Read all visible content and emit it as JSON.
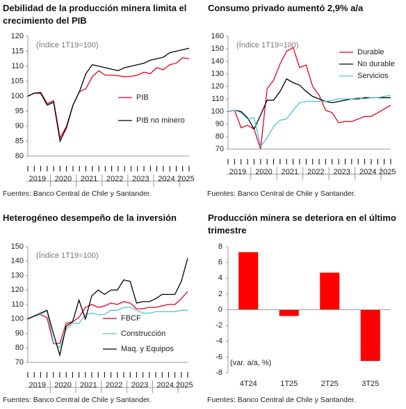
{
  "chart_data": [
    {
      "type": "line",
      "title": "Debilidad de la producción minera limita el crecimiento del PIB",
      "annotation": "(Índice 1T19=100)",
      "source": "Fuentes: Banco Central de Chile y Santander.",
      "year_labels": [
        "2019",
        "2020",
        "2021",
        "2022",
        "2023",
        "2024",
        "2025"
      ],
      "ylim": [
        80,
        120
      ],
      "yticks": [
        80,
        85,
        90,
        95,
        100,
        105,
        110,
        115,
        120
      ],
      "legend": "center",
      "series": [
        {
          "name": "PIB",
          "color": "#e3001b",
          "values": [
            100,
            101,
            101.3,
            97.5,
            98.5,
            86,
            90,
            97,
            101.5,
            102.5,
            106.5,
            108.5,
            107,
            107,
            106.8,
            106.5,
            106.6,
            107,
            108,
            107.5,
            109.5,
            108.8,
            110.5,
            111,
            112.8,
            112.5
          ]
        },
        {
          "name": "PIB no minero",
          "color": "#000000",
          "values": [
            100,
            101,
            101,
            97,
            98,
            85,
            89.5,
            97,
            101.5,
            107.5,
            110.5,
            110,
            109.5,
            109,
            108.5,
            109.5,
            110,
            110.5,
            111,
            112,
            112.5,
            113,
            114.5,
            115,
            115.5,
            116
          ]
        }
      ]
    },
    {
      "type": "line",
      "title": "Consumo privado aumentó 2,9% a/a",
      "annotation": "(Índice 1T19=100)",
      "source": "Fuentes: Banco Central de Chile y Santander.",
      "year_labels": [
        "2019",
        "2020",
        "2021",
        "2022",
        "2023",
        "2024",
        "2025"
      ],
      "ylim": [
        70,
        160
      ],
      "yticks": [
        70,
        80,
        90,
        100,
        110,
        120,
        130,
        140,
        150,
        160
      ],
      "legend": "upper",
      "series": [
        {
          "name": "Durable",
          "color": "#e3001b",
          "values": [
            100,
            101,
            87,
            89,
            86,
            70,
            118,
            125,
            138,
            148,
            151,
            135,
            137,
            120,
            113,
            101,
            99,
            91,
            92,
            92,
            94,
            96,
            96,
            99,
            102,
            105
          ]
        },
        {
          "name": "No durable",
          "color": "#000000",
          "values": [
            100,
            101,
            100,
            95,
            86,
            97,
            109,
            109,
            116,
            126,
            123,
            121,
            116,
            112,
            110,
            108,
            107,
            108,
            109,
            110,
            110,
            111,
            111,
            111,
            111,
            111
          ]
        },
        {
          "name": "Servicios",
          "color": "#4fc3d6",
          "values": [
            100,
            101,
            99,
            94,
            95,
            72,
            79,
            88,
            93,
            94,
            101,
            107,
            108,
            108,
            108,
            108,
            109,
            110,
            110,
            110,
            111,
            110,
            111,
            111,
            112,
            113
          ]
        }
      ]
    },
    {
      "type": "line",
      "title": "Heterogéneo desempeño de la inversión",
      "annotation": "(Índice 1T19=100)",
      "source": "Fuentes: Banco Central de Chile y Santander.",
      "year_labels": [
        "2019",
        "2020",
        "2021",
        "2022",
        "2023",
        "2024",
        "2025"
      ],
      "ylim": [
        70,
        150
      ],
      "yticks": [
        70,
        80,
        90,
        100,
        110,
        120,
        130,
        140,
        150
      ],
      "legend": "lower",
      "series": [
        {
          "name": "FBCF",
          "color": "#e3001b",
          "values": [
            100,
            102,
            103,
            101,
            83,
            83,
            97,
            98,
            101,
            108,
            110,
            108,
            109,
            111,
            110,
            112,
            111,
            107,
            107,
            108,
            108,
            109,
            110,
            110,
            114,
            119
          ]
        },
        {
          "name": "Construcción",
          "color": "#4fc3d6",
          "values": [
            100,
            102,
            103,
            106,
            84,
            80,
            93,
            97,
            97,
            103,
            104,
            103,
            103,
            106,
            106,
            108,
            108,
            106,
            104,
            104,
            105,
            105,
            105,
            105,
            106,
            106
          ]
        },
        {
          "name": "Maq. y Equipos",
          "color": "#000000",
          "values": [
            100,
            102,
            104,
            106,
            90,
            75,
            95,
            98,
            113,
            100,
            116,
            120,
            117,
            120,
            120,
            127,
            126,
            111,
            112,
            112,
            114,
            117,
            117,
            117,
            126,
            142
          ]
        }
      ]
    },
    {
      "type": "bar",
      "title": "Producción minera se deteriora en el último trimestre",
      "annotation": "(var. a/a, %)",
      "source": "Fuentes: Banco Central de Chile y Santander.",
      "categories": [
        "4T24",
        "1T25",
        "2T25",
        "3T25"
      ],
      "values": [
        7.3,
        -0.8,
        4.7,
        -6.5
      ],
      "color": "#ff0000",
      "ylim": [
        -8,
        8
      ],
      "yticks": [
        -8,
        -6,
        -4,
        -2,
        0,
        2,
        4,
        6,
        8
      ]
    }
  ]
}
